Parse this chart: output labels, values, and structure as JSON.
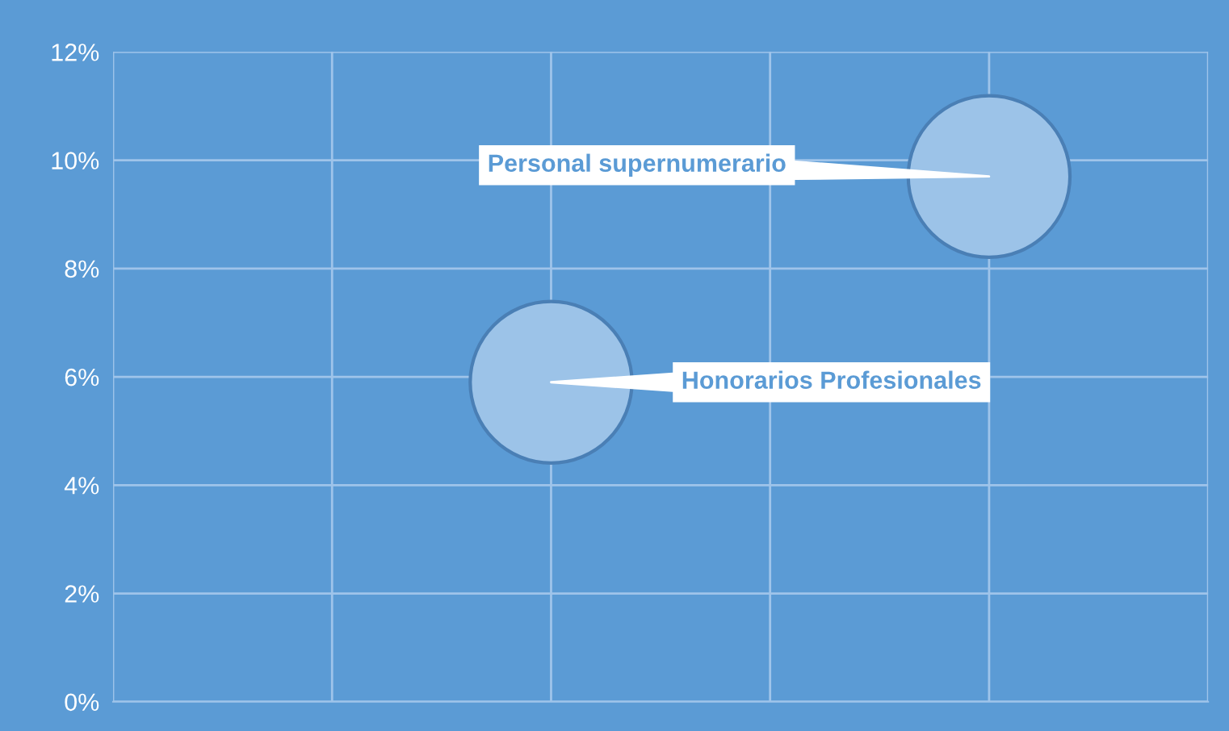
{
  "chart_data": {
    "type": "bubble",
    "categories": [
      null,
      null,
      null,
      null,
      null,
      null
    ],
    "series": [
      {
        "name": "Honorarios Profesionales",
        "color": "#9cc3e8",
        "values": [
          null,
          null,
          5.9,
          null,
          null,
          null
        ],
        "sizes": [
          null,
          null,
          1,
          null,
          null,
          null
        ]
      },
      {
        "name": "Personal supernumerario",
        "color": "#9cc3e8",
        "values": [
          null,
          null,
          null,
          null,
          9.7,
          null
        ],
        "sizes": [
          null,
          null,
          null,
          null,
          1,
          null
        ]
      }
    ],
    "ylim": [
      0,
      12
    ],
    "yticks": [
      {
        "value": 0,
        "label": "0%"
      },
      {
        "value": 2,
        "label": "2%"
      },
      {
        "value": 4,
        "label": "4%"
      },
      {
        "value": 6,
        "label": "6%"
      },
      {
        "value": 8,
        "label": "8%"
      },
      {
        "value": 10,
        "label": "10%"
      },
      {
        "value": 12,
        "label": "12%"
      }
    ],
    "grid": true,
    "tick_labels": "y",
    "legend": false
  }
}
